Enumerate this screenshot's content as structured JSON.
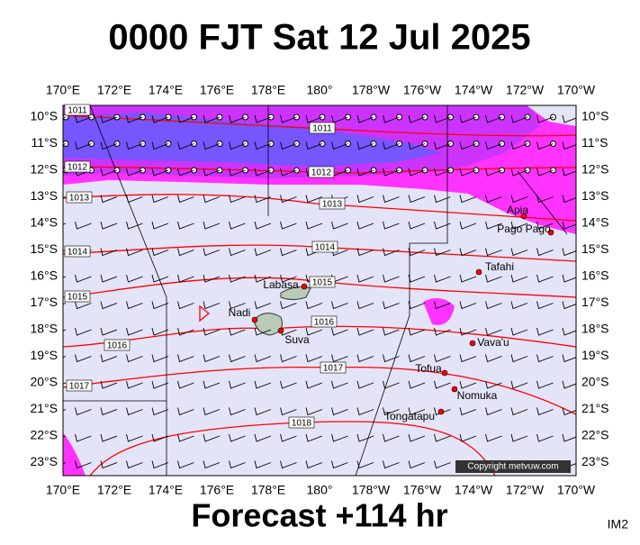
{
  "title": "0000 FJT Sat 12 Jul 2025",
  "footer": "Forecast +114 hr",
  "corner_label": "IM2",
  "copyright": "Copyright metvuw.com",
  "lon_labels": [
    "170°E",
    "172°E",
    "174°E",
    "176°E",
    "178°E",
    "180°",
    "178°W",
    "176°W",
    "174°W",
    "172°W",
    "170°W"
  ],
  "lat_labels": [
    "10°S",
    "11°S",
    "12°S",
    "13°S",
    "14°S",
    "15°S",
    "16°S",
    "17°S",
    "18°S",
    "19°S",
    "20°S",
    "21°S",
    "22°S",
    "23°S"
  ],
  "places": [
    "Apia",
    "Pago Pago",
    "Tafahi",
    "Labasa",
    "Nadi",
    "Suva",
    "Vava'u",
    "Tofua",
    "Nomuka",
    "Tongatapu"
  ],
  "isobar_labels": [
    "1011",
    "1011",
    "1012",
    "1012",
    "1013",
    "1013",
    "1014",
    "1014",
    "1015",
    "1015",
    "1016",
    "1016",
    "1017",
    "1017",
    "1018"
  ]
}
